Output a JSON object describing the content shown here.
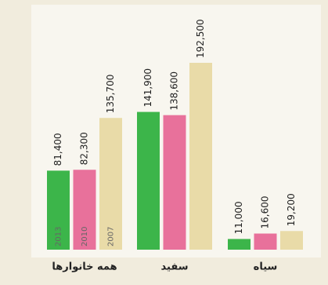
{
  "chart_data": {
    "type": "bar",
    "categories": [
      "همه خانوارها",
      "سفید",
      "سیاه"
    ],
    "series": [
      {
        "name": "2013",
        "color": "#3cb54a",
        "values": [
          81400,
          141900,
          11000
        ],
        "value_labels": [
          "81,400",
          "141,900",
          "11,000"
        ]
      },
      {
        "name": "2010",
        "color": "#e8719b",
        "values": [
          82300,
          138600,
          16600
        ],
        "value_labels": [
          "82,300",
          "138,600",
          "16,600"
        ]
      },
      {
        "name": "2007",
        "color": "#e9dba8",
        "values": [
          135700,
          192500,
          19200
        ],
        "value_labels": [
          "135,700",
          "192,500",
          "19,200"
        ]
      }
    ]
  }
}
